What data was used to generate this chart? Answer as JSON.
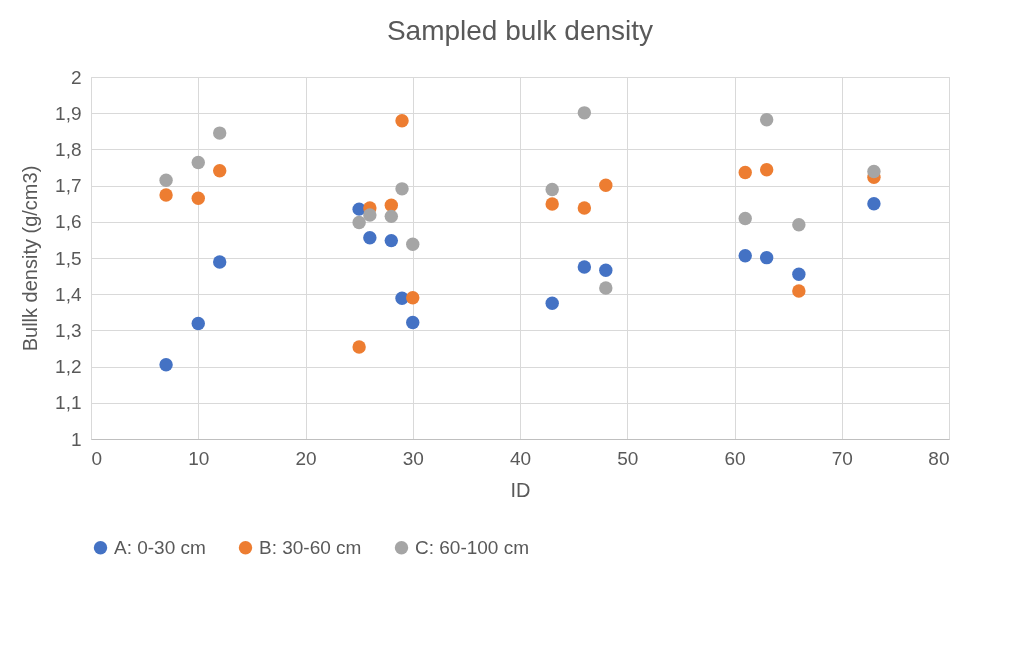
{
  "chart_data": {
    "type": "scatter",
    "title": "Sampled bulk density",
    "xlabel": "ID",
    "ylabel": "Bullk density (g/cm3)",
    "x": [
      7,
      10,
      12,
      25,
      26,
      28,
      29,
      30,
      43,
      46,
      48,
      61,
      63,
      66,
      73
    ],
    "series": [
      {
        "name": "A: 0-30 cm",
        "color": "#4472c4",
        "values": [
          1.205,
          1.319,
          1.489,
          1.635,
          1.556,
          1.548,
          1.389,
          1.322,
          1.375,
          1.475,
          1.466,
          1.506,
          1.501,
          1.455,
          1.65
        ]
      },
      {
        "name": "B: 30-60 cm",
        "color": "#ed7d31",
        "values": [
          1.674,
          1.665,
          1.741,
          1.254,
          1.638,
          1.646,
          1.879,
          1.39,
          1.649,
          1.638,
          1.701,
          1.736,
          1.744,
          1.409,
          1.723
        ]
      },
      {
        "name": "C: 60-100 cm",
        "color": "#a5a5a5",
        "values": [
          1.715,
          1.764,
          1.845,
          1.598,
          1.619,
          1.615,
          1.691,
          1.538,
          1.689,
          1.901,
          1.417,
          1.609,
          1.882,
          1.592,
          1.739
        ]
      }
    ],
    "xlim": [
      0,
      80
    ],
    "xticks": [
      0,
      10,
      20,
      30,
      40,
      50,
      60,
      70,
      80
    ],
    "ylim": [
      1,
      2
    ],
    "yticks": [
      {
        "value": 1,
        "label": "1"
      },
      {
        "value": 1.1,
        "label": "1,1"
      },
      {
        "value": 1.2,
        "label": "1,2"
      },
      {
        "value": 1.3,
        "label": "1,3"
      },
      {
        "value": 1.4,
        "label": "1,4"
      },
      {
        "value": 1.5,
        "label": "1,5"
      },
      {
        "value": 1.6,
        "label": "1,6"
      },
      {
        "value": 1.7,
        "label": "1,7"
      },
      {
        "value": 1.8,
        "label": "1,8"
      },
      {
        "value": 1.9,
        "label": "1,9"
      },
      {
        "value": 2,
        "label": "2"
      }
    ],
    "grid": true,
    "legend": "bottom",
    "marker": "circle"
  }
}
